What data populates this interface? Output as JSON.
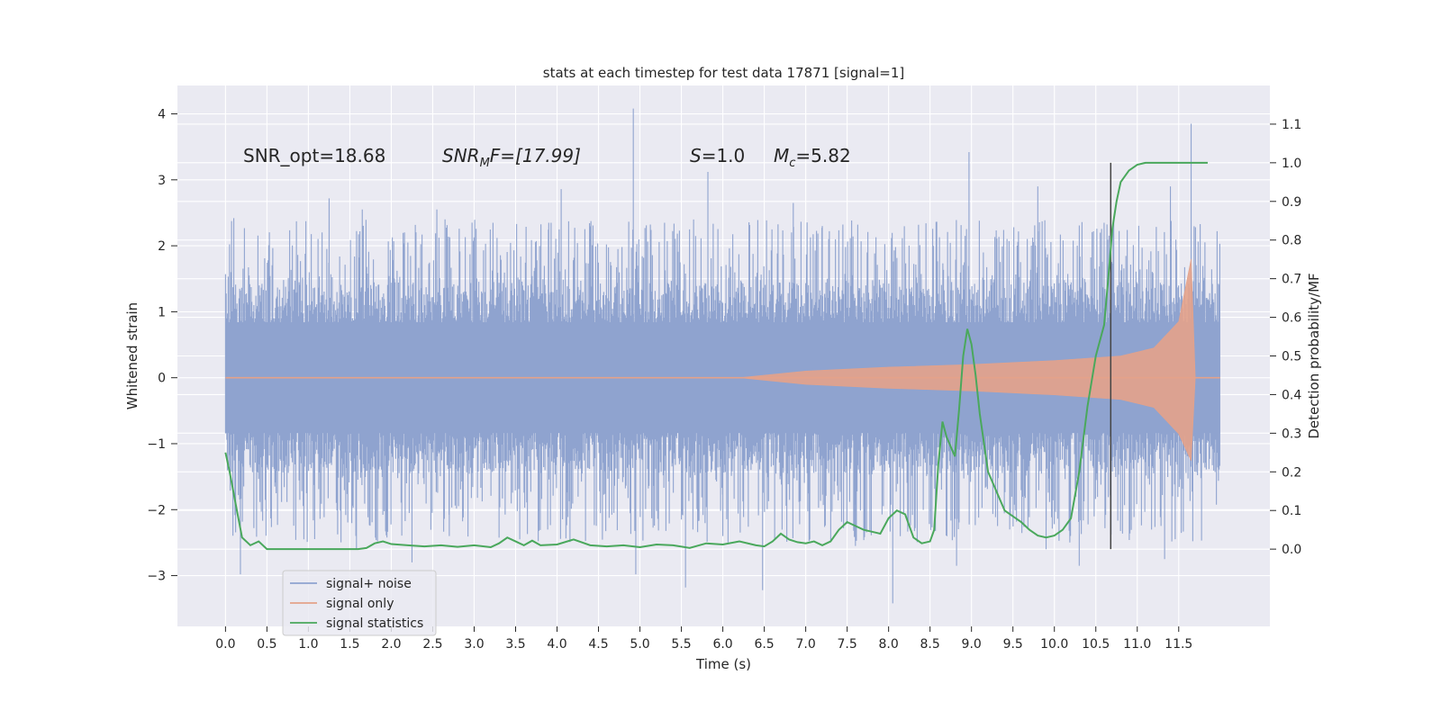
{
  "chart_data": {
    "type": "line",
    "title": "stats at each timestep for test data 17871 [signal=1]",
    "xlabel": "Time (s)",
    "ylabel": "Whitened strain",
    "y2label": "Detection probability/MF",
    "xlim": [
      -0.58,
      12.6
    ],
    "ylim": [
      -3.77,
      4.43
    ],
    "y2lim": [
      -0.2,
      1.2
    ],
    "xticks": [
      0.0,
      0.5,
      1.0,
      1.5,
      2.0,
      2.5,
      3.0,
      3.5,
      4.0,
      4.5,
      5.0,
      5.5,
      6.0,
      6.5,
      7.0,
      7.5,
      8.0,
      8.5,
      9.0,
      9.5,
      10.0,
      10.5,
      11.0,
      11.5
    ],
    "xtick_labels": [
      "0.0",
      "0.5",
      "1.0",
      "1.5",
      "2.0",
      "2.5",
      "3.0",
      "3.5",
      "4.0",
      "4.5",
      "5.0",
      "5.5",
      "6.0",
      "6.5",
      "7.0",
      "7.5",
      "8.0",
      "8.5",
      "9.0",
      "9.5",
      "10.0",
      "10.5",
      "11.0",
      "11.5"
    ],
    "yticks": [
      -3,
      -2,
      -1,
      0,
      1,
      2,
      3,
      4
    ],
    "ytick_labels": [
      "−3",
      "−2",
      "−1",
      "0",
      "1",
      "2",
      "3",
      "4"
    ],
    "y2ticks": [
      0.0,
      0.1,
      0.2,
      0.3,
      0.4,
      0.5,
      0.6,
      0.7,
      0.8,
      0.9,
      1.0,
      1.1
    ],
    "y2tick_labels": [
      "0.0",
      "0.1",
      "0.2",
      "0.3",
      "0.4",
      "0.5",
      "0.6",
      "0.7",
      "0.8",
      "0.9",
      "1.0",
      "1.1"
    ],
    "grid": true,
    "legend_position": "lower-left",
    "annotations": {
      "snr_opt": "SNR_opt=18.68",
      "snr_mf_name": "SNR",
      "snr_mf_sub": "M",
      "snr_mf_rest": "F=[17.99]",
      "s_name": "S",
      "s_rest": "=1.0",
      "mc_name": "M",
      "mc_sub": "c",
      "mc_rest": "=5.82"
    },
    "vline_x": 10.68,
    "vline_y2_range": [
      0.0,
      1.0
    ],
    "series": [
      {
        "name": "signal+ noise",
        "color": "#8fa3cf",
        "kind": "noise",
        "x_range": [
          0.0,
          12.0
        ],
        "core_amplitude": 1.45,
        "spikes": [
          [
            4.92,
            4.08
          ],
          [
            11.65,
            3.85
          ],
          [
            8.97,
            3.42
          ],
          [
            5.82,
            3.12
          ],
          [
            4.05,
            2.86
          ],
          [
            1.25,
            2.72
          ],
          [
            2.55,
            2.55
          ],
          [
            0.1,
            2.42
          ],
          [
            1.65,
            2.55
          ],
          [
            10.6,
            2.35
          ],
          [
            11.4,
            2.9
          ],
          [
            9.8,
            2.9
          ],
          [
            3.9,
            2.35
          ],
          [
            7.2,
            2.3
          ],
          [
            6.85,
            2.65
          ],
          [
            8.05,
            -3.42
          ],
          [
            6.48,
            -3.22
          ],
          [
            5.55,
            -3.18
          ],
          [
            0.18,
            -2.98
          ],
          [
            4.95,
            -2.98
          ],
          [
            2.25,
            -2.8
          ],
          [
            11.33,
            -2.75
          ],
          [
            8.82,
            -2.85
          ],
          [
            1.58,
            -2.6
          ],
          [
            3.55,
            -2.45
          ],
          [
            9.9,
            -2.6
          ],
          [
            7.6,
            -2.55
          ],
          [
            10.3,
            -2.85
          ],
          [
            2.7,
            -2.4
          ],
          [
            6.0,
            -2.4
          ]
        ]
      },
      {
        "name": "signal only",
        "color": "#e4a28a",
        "kind": "chirp",
        "x_range": [
          0.0,
          12.0
        ],
        "merger_x": 11.65,
        "envelope": [
          [
            6.2,
            0.0
          ],
          [
            7.0,
            0.1
          ],
          [
            8.0,
            0.16
          ],
          [
            9.0,
            0.2
          ],
          [
            10.0,
            0.26
          ],
          [
            10.8,
            0.33
          ],
          [
            11.2,
            0.45
          ],
          [
            11.5,
            0.85
          ],
          [
            11.65,
            1.8
          ],
          [
            11.7,
            0.0
          ]
        ]
      },
      {
        "name": "signal statistics",
        "color": "#4aa85c",
        "kind": "line",
        "axis": "right",
        "x": [
          0.0,
          0.05,
          0.12,
          0.2,
          0.3,
          0.4,
          0.5,
          0.6,
          0.8,
          1.0,
          1.2,
          1.4,
          1.6,
          1.7,
          1.8,
          1.9,
          2.0,
          2.2,
          2.4,
          2.6,
          2.8,
          3.0,
          3.2,
          3.3,
          3.4,
          3.5,
          3.6,
          3.7,
          3.8,
          4.0,
          4.2,
          4.4,
          4.6,
          4.8,
          5.0,
          5.2,
          5.4,
          5.6,
          5.8,
          6.0,
          6.2,
          6.4,
          6.5,
          6.6,
          6.7,
          6.8,
          6.9,
          7.0,
          7.1,
          7.2,
          7.3,
          7.4,
          7.5,
          7.6,
          7.7,
          7.8,
          7.9,
          8.0,
          8.1,
          8.2,
          8.3,
          8.4,
          8.5,
          8.55,
          8.6,
          8.65,
          8.7,
          8.8,
          8.85,
          8.9,
          8.95,
          9.0,
          9.05,
          9.1,
          9.2,
          9.3,
          9.4,
          9.5,
          9.6,
          9.7,
          9.8,
          9.9,
          10.0,
          10.1,
          10.2,
          10.3,
          10.4,
          10.5,
          10.6,
          10.65,
          10.7,
          10.75,
          10.8,
          10.9,
          11.0,
          11.1,
          11.3,
          11.6,
          11.85
        ],
        "values": [
          0.25,
          0.2,
          0.12,
          0.03,
          0.01,
          0.02,
          0.0,
          0.0,
          0.0,
          0.0,
          0.0,
          0.0,
          0.0,
          0.003,
          0.015,
          0.02,
          0.013,
          0.01,
          0.007,
          0.01,
          0.006,
          0.01,
          0.005,
          0.015,
          0.03,
          0.02,
          0.01,
          0.022,
          0.01,
          0.012,
          0.025,
          0.01,
          0.007,
          0.01,
          0.005,
          0.012,
          0.01,
          0.003,
          0.015,
          0.012,
          0.02,
          0.01,
          0.007,
          0.02,
          0.04,
          0.025,
          0.018,
          0.015,
          0.02,
          0.01,
          0.02,
          0.05,
          0.07,
          0.06,
          0.05,
          0.045,
          0.04,
          0.08,
          0.1,
          0.09,
          0.03,
          0.015,
          0.02,
          0.05,
          0.22,
          0.33,
          0.29,
          0.24,
          0.36,
          0.5,
          0.57,
          0.53,
          0.45,
          0.35,
          0.2,
          0.15,
          0.1,
          0.085,
          0.07,
          0.05,
          0.035,
          0.03,
          0.035,
          0.05,
          0.08,
          0.2,
          0.37,
          0.5,
          0.58,
          0.7,
          0.83,
          0.9,
          0.95,
          0.98,
          0.995,
          1.0,
          1.0,
          1.0,
          1.0
        ]
      }
    ]
  }
}
